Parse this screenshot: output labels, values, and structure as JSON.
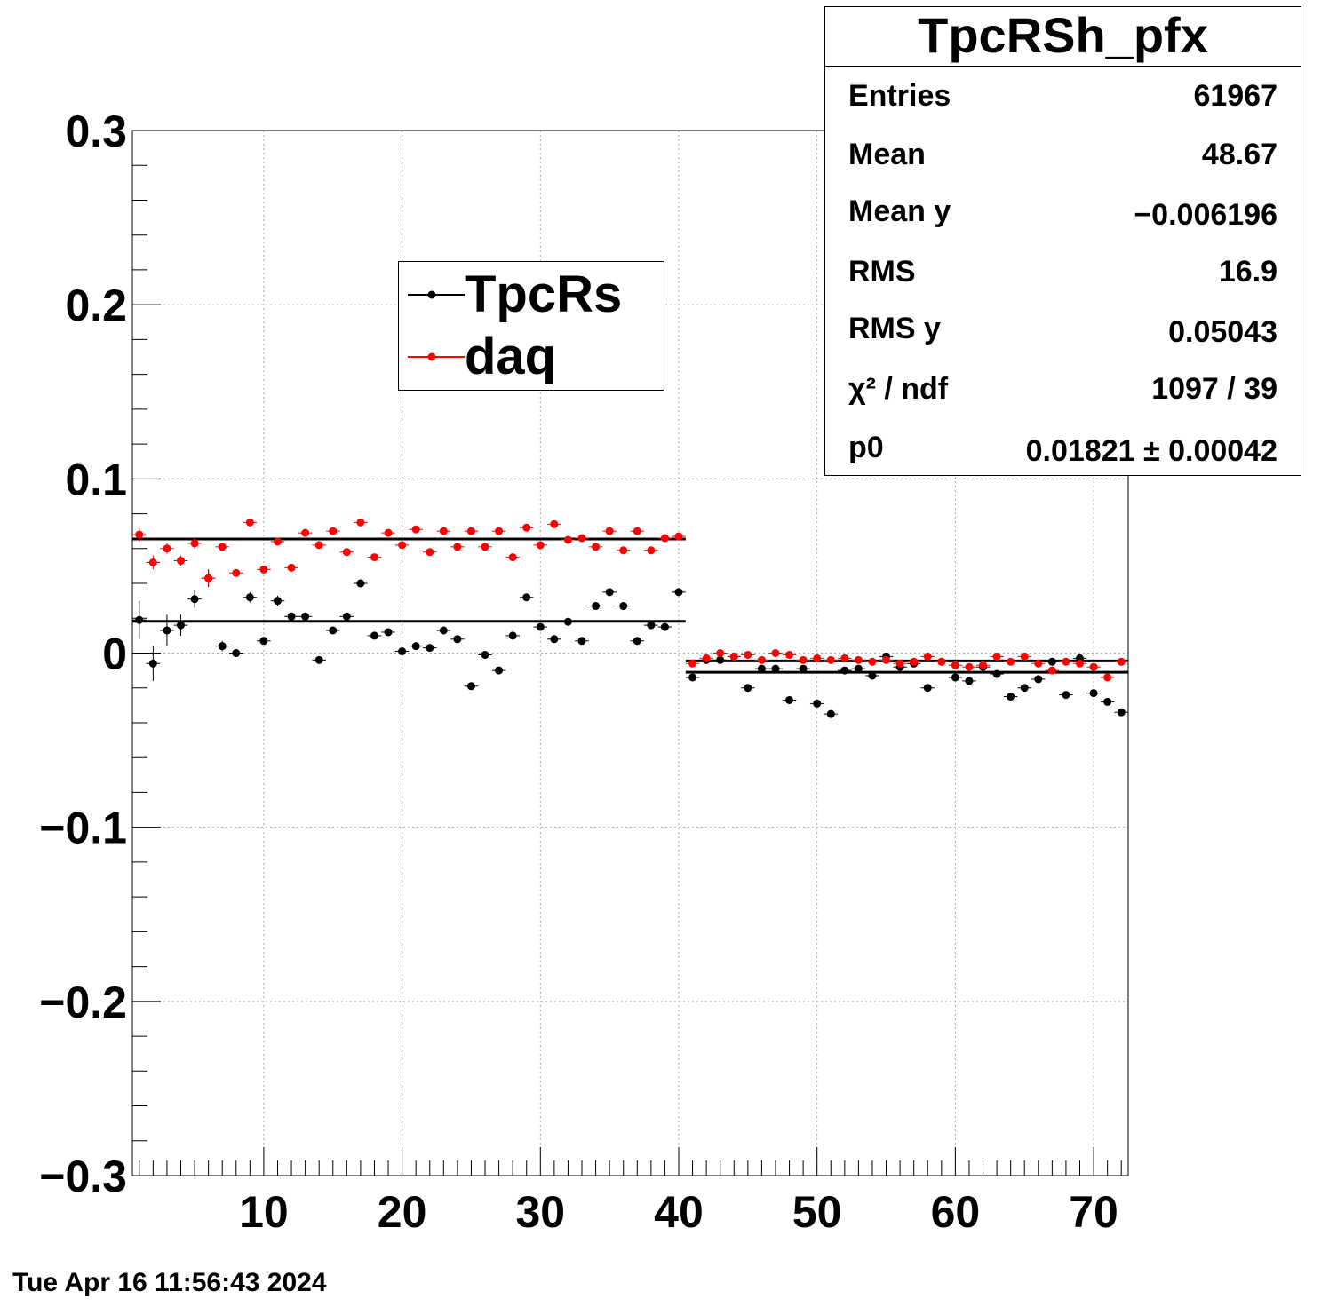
{
  "chart_data": {
    "type": "scatter",
    "title": "TpcRSh_pfx",
    "xlabel": "",
    "ylabel": "",
    "xlim": [
      0.5,
      72.5
    ],
    "ylim": [
      -0.3,
      0.3
    ],
    "x_ticks": [
      "10",
      "20",
      "30",
      "40",
      "50",
      "60",
      "70"
    ],
    "y_ticks": [
      "0.3",
      "0.2",
      "0.1",
      "0",
      "−0.1",
      "−0.2",
      "−0.3"
    ],
    "grid": true,
    "legend_position": "top-center",
    "series": [
      {
        "name": "TpcRs",
        "color": "#000000",
        "x": [
          1,
          2,
          3,
          4,
          5,
          6,
          7,
          8,
          9,
          10,
          11,
          12,
          13,
          14,
          15,
          16,
          17,
          18,
          19,
          20,
          21,
          22,
          23,
          24,
          25,
          26,
          27,
          28,
          29,
          30,
          31,
          32,
          33,
          34,
          35,
          36,
          37,
          38,
          39,
          40,
          41,
          42,
          43,
          44,
          45,
          46,
          47,
          48,
          49,
          50,
          51,
          52,
          53,
          54,
          55,
          56,
          57,
          58,
          59,
          60,
          61,
          62,
          63,
          64,
          65,
          66,
          67,
          68,
          69,
          70,
          71,
          72
        ],
        "y": [
          0.019,
          -0.006,
          0.013,
          0.016,
          0.031,
          0.043,
          0.004,
          0.0,
          0.032,
          0.007,
          0.03,
          0.021,
          0.021,
          -0.004,
          0.013,
          0.021,
          0.04,
          0.01,
          0.012,
          0.001,
          0.004,
          0.003,
          0.013,
          0.008,
          -0.019,
          -0.001,
          -0.01,
          0.01,
          0.032,
          0.015,
          0.008,
          0.018,
          0.007,
          0.027,
          0.035,
          0.027,
          0.007,
          0.016,
          0.015,
          0.035,
          -0.014,
          -0.004,
          -0.004,
          -0.002,
          -0.02,
          -0.009,
          -0.009,
          -0.027,
          -0.009,
          -0.029,
          -0.035,
          -0.01,
          -0.009,
          -0.013,
          -0.002,
          -0.008,
          -0.006,
          -0.02,
          -0.005,
          -0.014,
          -0.016,
          -0.008,
          -0.012,
          -0.025,
          -0.02,
          -0.015,
          -0.005,
          -0.024,
          -0.003,
          -0.023,
          -0.028,
          -0.034
        ],
        "yerr": [
          0.011,
          0.01,
          0.009,
          0.006,
          0.005,
          0.005,
          0.003,
          0.002,
          0.003,
          0.002,
          0.003,
          0.002,
          0.002,
          0.002,
          0.002,
          0.002,
          0.002,
          0.002,
          0.002,
          0.002,
          0.002,
          0.002,
          0.002,
          0.002,
          0.002,
          0.002,
          0.002,
          0.002,
          0.002,
          0.002,
          0.002,
          0.002,
          0.002,
          0.002,
          0.002,
          0.002,
          0.002,
          0.002,
          0.002,
          0.002,
          0.002,
          0.002,
          0.002,
          0.002,
          0.002,
          0.002,
          0.002,
          0.002,
          0.002,
          0.002,
          0.002,
          0.002,
          0.002,
          0.002,
          0.002,
          0.002,
          0.002,
          0.002,
          0.002,
          0.002,
          0.002,
          0.002,
          0.002,
          0.002,
          0.002,
          0.002,
          0.002,
          0.002,
          0.002,
          0.002,
          0.002,
          0.002
        ],
        "fits": [
          {
            "x": [
              0.5,
              40.5
            ],
            "y": 0.01821
          },
          {
            "x": [
              40.5,
              72.5
            ],
            "y": -0.011
          }
        ]
      },
      {
        "name": "daq",
        "color": "#ff0000",
        "x": [
          1,
          2,
          3,
          4,
          5,
          6,
          7,
          8,
          9,
          10,
          11,
          12,
          13,
          14,
          15,
          16,
          17,
          18,
          19,
          20,
          21,
          22,
          23,
          24,
          25,
          26,
          27,
          28,
          29,
          30,
          31,
          32,
          33,
          34,
          35,
          36,
          37,
          38,
          39,
          40,
          41,
          42,
          43,
          44,
          45,
          46,
          47,
          48,
          49,
          50,
          51,
          52,
          53,
          54,
          55,
          56,
          57,
          58,
          59,
          60,
          61,
          62,
          63,
          64,
          65,
          66,
          67,
          68,
          69,
          70,
          71,
          72
        ],
        "y": [
          0.068,
          0.052,
          0.06,
          0.053,
          0.063,
          0.043,
          0.061,
          0.046,
          0.075,
          0.048,
          0.064,
          0.049,
          0.069,
          0.062,
          0.07,
          0.058,
          0.075,
          0.055,
          0.069,
          0.062,
          0.071,
          0.058,
          0.07,
          0.061,
          0.07,
          0.061,
          0.07,
          0.055,
          0.072,
          0.062,
          0.074,
          0.065,
          0.066,
          0.061,
          0.07,
          0.059,
          0.07,
          0.059,
          0.066,
          0.067,
          -0.006,
          -0.003,
          0.0,
          -0.002,
          -0.001,
          -0.004,
          0.0,
          -0.001,
          -0.004,
          -0.003,
          -0.004,
          -0.003,
          -0.004,
          -0.005,
          -0.004,
          -0.006,
          -0.005,
          -0.002,
          -0.005,
          -0.007,
          -0.008,
          -0.007,
          -0.002,
          -0.005,
          -0.002,
          -0.006,
          -0.01,
          -0.005,
          -0.006,
          -0.008,
          -0.014,
          -0.005
        ],
        "yerr": [
          0.004,
          0.004,
          0.003,
          0.003,
          0.003,
          0.004,
          0.002,
          0.002,
          0.002,
          0.002,
          0.002,
          0.002,
          0.002,
          0.002,
          0.002,
          0.002,
          0.002,
          0.002,
          0.002,
          0.002,
          0.002,
          0.002,
          0.002,
          0.002,
          0.002,
          0.002,
          0.002,
          0.002,
          0.002,
          0.002,
          0.002,
          0.002,
          0.002,
          0.002,
          0.002,
          0.002,
          0.002,
          0.002,
          0.002,
          0.002,
          0.002,
          0.002,
          0.002,
          0.002,
          0.002,
          0.002,
          0.002,
          0.002,
          0.002,
          0.002,
          0.002,
          0.002,
          0.002,
          0.002,
          0.002,
          0.002,
          0.002,
          0.002,
          0.002,
          0.002,
          0.002,
          0.002,
          0.002,
          0.002,
          0.002,
          0.002,
          0.002,
          0.002,
          0.002,
          0.002,
          0.002,
          0.002
        ],
        "fits": [
          {
            "x": [
              0.5,
              40.5
            ],
            "y": 0.0655
          },
          {
            "x": [
              40.5,
              72.5
            ],
            "y": -0.0045
          }
        ]
      }
    ]
  },
  "stats": {
    "title": "TpcRSh_pfx",
    "rows": [
      {
        "key": "Entries",
        "value": "61967"
      },
      {
        "key": "Mean",
        "value": "48.67"
      },
      {
        "key": "Mean y",
        "value": "−0.006196"
      },
      {
        "key": "RMS",
        "value": "16.9"
      },
      {
        "key": "RMS y",
        "value": "0.05043"
      },
      {
        "key": "χ² / ndf",
        "value": "1097 / 39"
      },
      {
        "key": "p0",
        "value": "0.01821 ± 0.00042"
      }
    ]
  },
  "legend": {
    "entries": [
      {
        "label": "TpcRs",
        "color": "#000000"
      },
      {
        "label": "daq",
        "color": "#ff0000"
      }
    ]
  },
  "footer": {
    "timestamp": "Tue Apr 16 11:56:43 2024"
  }
}
